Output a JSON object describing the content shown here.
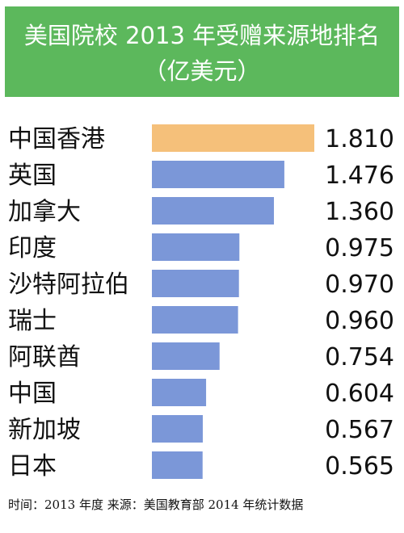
{
  "header": {
    "title": "美国院校 2013 年受赠来源地排名",
    "subtitle": "（亿美元）"
  },
  "footer": {
    "note": "时间：2013 年度  来源：美国教育部 2014 年统计数据"
  },
  "colors": {
    "header_bg": "#5cb85c",
    "highlight_bar": "#f5c07a",
    "bar": "#7b97d8"
  },
  "chart_data": {
    "type": "bar",
    "orientation": "horizontal",
    "title": "美国院校 2013 年受赠来源地排名",
    "unit": "（亿美元）",
    "categories": [
      "中国香港",
      "英国",
      "加拿大",
      "印度",
      "沙特阿拉伯",
      "瑞士",
      "阿联酋",
      "中国",
      "新加坡",
      "日本"
    ],
    "values": [
      1.81,
      1.476,
      1.36,
      0.975,
      0.97,
      0.96,
      0.754,
      0.604,
      0.567,
      0.565
    ],
    "value_labels": [
      "1.810",
      "1.476",
      "1.360",
      "0.975",
      "0.970",
      "0.960",
      "0.754",
      "0.604",
      "0.567",
      "0.565"
    ],
    "highlight_index": 0,
    "xlim": [
      0,
      1.81
    ],
    "grid": false
  }
}
